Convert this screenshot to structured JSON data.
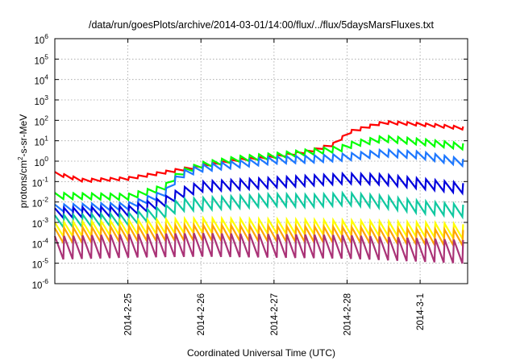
{
  "chart_data": {
    "type": "line",
    "title": "/data/run/goesPlots/archive/2014-03-01/14:00/flux/../flux/5daysMarsFluxes.txt",
    "xlabel": "Coordinated Universal Time (UTC)",
    "ylabel": {
      "prefix": "protons/cm",
      "superscript": "2",
      "suffix": "-s-sr-MeV"
    },
    "y_scale": "log",
    "ylim_exponents": [
      -6,
      6
    ],
    "y_ticks": [
      {
        "base": "10",
        "exp": "-6"
      },
      {
        "base": "10",
        "exp": "-5"
      },
      {
        "base": "10",
        "exp": "-4"
      },
      {
        "base": "10",
        "exp": "-3"
      },
      {
        "base": "10",
        "exp": "-2"
      },
      {
        "base": "10",
        "exp": "-1"
      },
      {
        "base": "10",
        "exp": "0"
      },
      {
        "base": "10",
        "exp": "1"
      },
      {
        "base": "10",
        "exp": "2"
      },
      {
        "base": "10",
        "exp": "3"
      },
      {
        "base": "10",
        "exp": "4"
      },
      {
        "base": "10",
        "exp": "5"
      },
      {
        "base": "10",
        "exp": "6"
      }
    ],
    "xlim_days": [
      0,
      5.65
    ],
    "x_ticks": [
      {
        "label": "2014-2-25",
        "day": 1.0
      },
      {
        "label": "2014-2-26",
        "day": 2.0
      },
      {
        "label": "2014-2-27",
        "day": 3.0
      },
      {
        "label": "2014-2-28",
        "day": 4.0
      },
      {
        "label": "2014-3-1",
        "day": 5.0
      }
    ],
    "grid": true,
    "legend": "none",
    "sawtooth_period_days": 0.127,
    "series": [
      {
        "color": "#ff0000",
        "amplitude_decades": 0.15,
        "trend": [
          [
            0,
            -0.6
          ],
          [
            0.4,
            -0.95
          ],
          [
            1.0,
            -0.85
          ],
          [
            1.5,
            -0.55
          ],
          [
            2.0,
            -0.25
          ],
          [
            2.5,
            0.05
          ],
          [
            3.0,
            0.2
          ],
          [
            3.5,
            0.5
          ],
          [
            3.8,
            0.8
          ],
          [
            4.05,
            1.45
          ],
          [
            4.5,
            1.9
          ],
          [
            4.8,
            1.85
          ],
          [
            5.2,
            1.75
          ],
          [
            5.65,
            1.6
          ]
        ]
      },
      {
        "color": "#00ff00",
        "amplitude_decades": 0.3,
        "trend": [
          [
            0,
            -1.7
          ],
          [
            1.0,
            -1.75
          ],
          [
            1.5,
            -1.3
          ],
          [
            1.7,
            -0.6
          ],
          [
            2.0,
            -0.2
          ],
          [
            2.5,
            0.1
          ],
          [
            3.0,
            0.25
          ],
          [
            3.5,
            0.45
          ],
          [
            3.9,
            0.6
          ],
          [
            4.1,
            0.85
          ],
          [
            4.5,
            1.1
          ],
          [
            5.0,
            0.95
          ],
          [
            5.65,
            0.7
          ]
        ]
      },
      {
        "color": "#1e78ff",
        "amplitude_decades": 0.35,
        "trend": [
          [
            0,
            -2.3
          ],
          [
            1.0,
            -2.2
          ],
          [
            1.5,
            -1.6
          ],
          [
            1.7,
            -0.7
          ],
          [
            2.0,
            -0.35
          ],
          [
            2.5,
            -0.15
          ],
          [
            3.0,
            0.05
          ],
          [
            3.5,
            0.1
          ],
          [
            4.0,
            0.2
          ],
          [
            4.5,
            0.4
          ],
          [
            5.0,
            0.3
          ],
          [
            5.65,
            -0.1
          ]
        ]
      },
      {
        "color": "#0000dd",
        "amplitude_decades": 0.5,
        "trend": [
          [
            0,
            -2.55
          ],
          [
            1.0,
            -2.45
          ],
          [
            1.5,
            -2.0
          ],
          [
            1.7,
            -1.6
          ],
          [
            2.0,
            -1.25
          ],
          [
            2.5,
            -1.15
          ],
          [
            3.0,
            -1.05
          ],
          [
            3.5,
            -0.95
          ],
          [
            4.0,
            -0.85
          ],
          [
            4.5,
            -0.9
          ],
          [
            5.0,
            -1.1
          ],
          [
            5.65,
            -1.35
          ]
        ]
      },
      {
        "color": "#10c8a0",
        "amplitude_decades": 0.6,
        "trend": [
          [
            0,
            -2.95
          ],
          [
            1.0,
            -2.85
          ],
          [
            1.5,
            -2.5
          ],
          [
            1.7,
            -2.15
          ],
          [
            2.0,
            -2.1
          ],
          [
            2.5,
            -2.0
          ],
          [
            3.0,
            -1.9
          ],
          [
            3.5,
            -1.95
          ],
          [
            4.0,
            -1.85
          ],
          [
            4.5,
            -2.0
          ],
          [
            5.0,
            -2.25
          ],
          [
            5.65,
            -2.45
          ]
        ]
      },
      {
        "color": "#ffff00",
        "amplitude_decades": 0.7,
        "trend": [
          [
            0,
            -3.35
          ],
          [
            1.0,
            -3.25
          ],
          [
            2.0,
            -3.15
          ],
          [
            3.0,
            -3.2
          ],
          [
            4.0,
            -3.25
          ],
          [
            5.0,
            -3.35
          ],
          [
            5.65,
            -3.45
          ]
        ]
      },
      {
        "color": "#ffa500",
        "amplitude_decades": 0.75,
        "trend": [
          [
            0,
            -3.65
          ],
          [
            1.0,
            -3.55
          ],
          [
            2.0,
            -3.5
          ],
          [
            3.0,
            -3.55
          ],
          [
            4.0,
            -3.6
          ],
          [
            5.0,
            -3.7
          ],
          [
            5.65,
            -3.75
          ]
        ]
      },
      {
        "color": "#aa3377",
        "amplitude_decades": 1.15,
        "trend": [
          [
            0,
            -4.25
          ],
          [
            1.0,
            -4.15
          ],
          [
            2.0,
            -4.1
          ],
          [
            3.0,
            -4.15
          ],
          [
            4.0,
            -4.2
          ],
          [
            5.0,
            -4.35
          ],
          [
            5.65,
            -4.45
          ]
        ]
      }
    ]
  }
}
